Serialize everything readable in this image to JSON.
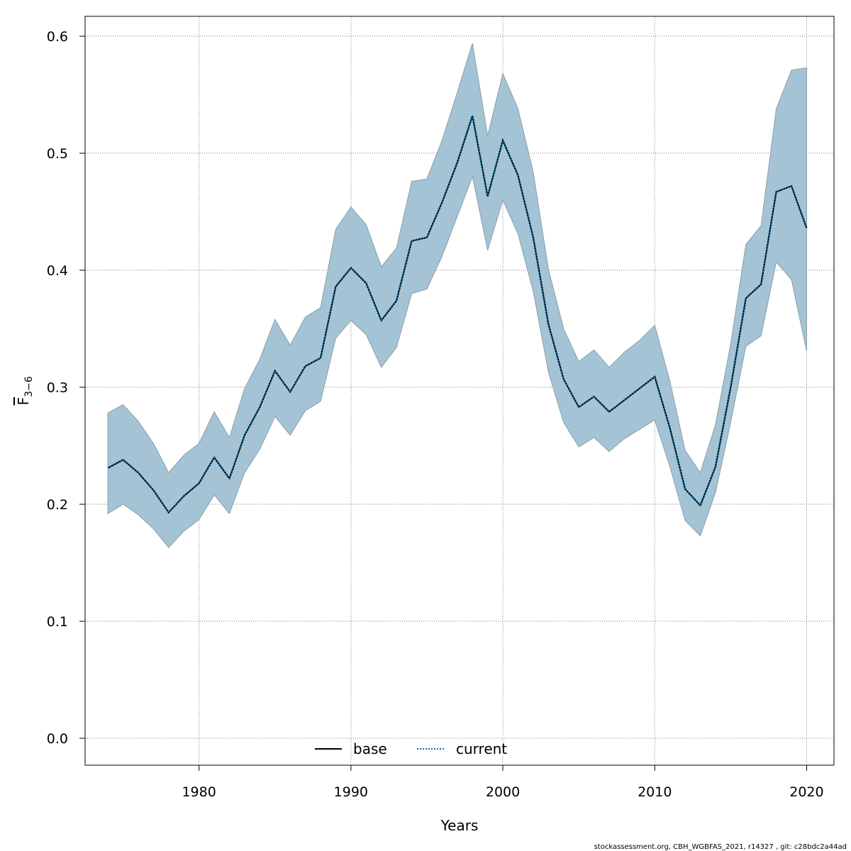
{
  "chart_data": {
    "type": "line",
    "xlabel": "Years",
    "ylabel": "F",
    "ylabel_subscript": "3−6",
    "xlim": [
      1972.5,
      2021.8
    ],
    "ylim": [
      -0.023,
      0.617
    ],
    "x_ticks": [
      1980,
      1990,
      2000,
      2010,
      2020
    ],
    "y_ticks": [
      0.0,
      0.1,
      0.2,
      0.3,
      0.4,
      0.5,
      0.6
    ],
    "x_tick_labels": [
      "1980",
      "1990",
      "2000",
      "2010",
      "2020"
    ],
    "y_tick_labels": [
      "0.0",
      "0.1",
      "0.2",
      "0.3",
      "0.4",
      "0.5",
      "0.6"
    ],
    "grid": true,
    "legend_placement": "bottom-center",
    "colors": {
      "band_fill": "#a4c4d6",
      "band_edge": "#8a9ea8",
      "current_line": "#0a6ea8",
      "base_line": "#000000",
      "grid": "#777777"
    },
    "x": [
      1974,
      1975,
      1976,
      1977,
      1978,
      1979,
      1980,
      1981,
      1982,
      1983,
      1984,
      1985,
      1986,
      1987,
      1988,
      1989,
      1990,
      1991,
      1992,
      1993,
      1994,
      1995,
      1996,
      1997,
      1998,
      1999,
      2000,
      2001,
      2002,
      2003,
      2004,
      2005,
      2006,
      2007,
      2008,
      2009,
      2010,
      2011,
      2012,
      2013,
      2014,
      2015,
      2016,
      2017,
      2018,
      2019,
      2020
    ],
    "series": [
      {
        "name": "base",
        "style": "solid",
        "values": [
          0.231,
          0.238,
          0.227,
          0.212,
          0.193,
          0.207,
          0.218,
          0.24,
          0.222,
          0.259,
          0.283,
          0.314,
          0.296,
          0.318,
          0.325,
          0.386,
          0.402,
          0.389,
          0.357,
          0.374,
          0.425,
          0.428,
          0.458,
          0.492,
          0.532,
          0.463,
          0.511,
          0.481,
          0.428,
          0.354,
          0.307,
          0.283,
          0.292,
          0.279,
          0.289,
          0.299,
          0.309,
          0.265,
          0.213,
          0.199,
          0.232,
          0.3,
          0.376,
          0.388,
          0.467,
          0.472,
          0.436
        ]
      },
      {
        "name": "current",
        "style": "dotted",
        "values": [
          0.231,
          0.238,
          0.227,
          0.212,
          0.193,
          0.207,
          0.218,
          0.24,
          0.222,
          0.259,
          0.283,
          0.314,
          0.296,
          0.318,
          0.325,
          0.386,
          0.402,
          0.389,
          0.357,
          0.374,
          0.425,
          0.428,
          0.458,
          0.492,
          0.532,
          0.463,
          0.511,
          0.481,
          0.428,
          0.354,
          0.307,
          0.283,
          0.292,
          0.279,
          0.289,
          0.299,
          0.309,
          0.265,
          0.213,
          0.199,
          0.232,
          0.3,
          0.376,
          0.388,
          0.467,
          0.472,
          0.436
        ]
      }
    ],
    "band": {
      "upper": [
        0.278,
        0.285,
        0.271,
        0.252,
        0.227,
        0.242,
        0.252,
        0.279,
        0.257,
        0.299,
        0.324,
        0.358,
        0.336,
        0.36,
        0.368,
        0.435,
        0.454,
        0.439,
        0.403,
        0.419,
        0.476,
        0.478,
        0.511,
        0.552,
        0.594,
        0.515,
        0.568,
        0.538,
        0.484,
        0.401,
        0.35,
        0.322,
        0.332,
        0.317,
        0.33,
        0.34,
        0.353,
        0.305,
        0.246,
        0.227,
        0.268,
        0.337,
        0.422,
        0.438,
        0.538,
        0.571,
        0.573
      ],
      "lower": [
        0.192,
        0.2,
        0.191,
        0.179,
        0.163,
        0.177,
        0.187,
        0.208,
        0.192,
        0.227,
        0.247,
        0.275,
        0.259,
        0.28,
        0.288,
        0.342,
        0.357,
        0.345,
        0.317,
        0.334,
        0.38,
        0.384,
        0.412,
        0.446,
        0.48,
        0.417,
        0.46,
        0.431,
        0.382,
        0.313,
        0.27,
        0.249,
        0.257,
        0.245,
        0.256,
        0.264,
        0.272,
        0.232,
        0.186,
        0.173,
        0.21,
        0.27,
        0.335,
        0.344,
        0.407,
        0.392,
        0.331
      ]
    }
  },
  "footer": {
    "text": "stockassessment.org, CBH_WGBFAS_2021, r14327 , git: c28bdc2a44ad"
  }
}
